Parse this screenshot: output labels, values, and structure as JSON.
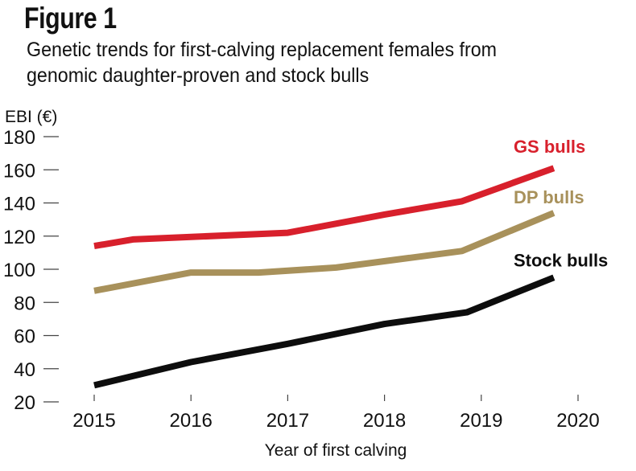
{
  "figure": {
    "title": "Figure 1",
    "subtitle_line1": "Genetic trends for first-calving replacement females from",
    "subtitle_line2": "genomic daughter-proven and stock bulls"
  },
  "chart_data": {
    "type": "line",
    "title": "Figure 1",
    "subtitle": "Genetic trends for first-calving replacement females from genomic daughter-proven and stock bulls",
    "xlabel": "Year of first calving",
    "ylabel": "EBI (€)",
    "xlim": [
      2015,
      2020
    ],
    "ylim": [
      20,
      180
    ],
    "x_ticks": [
      "2015",
      "2016",
      "2017",
      "2018",
      "2019",
      "2020"
    ],
    "y_ticks": [
      "180",
      "160",
      "140",
      "120",
      "100",
      "80",
      "60",
      "40",
      "20"
    ],
    "grid": false,
    "legend": "inline labels at line ends (right)",
    "series": [
      {
        "name": "GS bulls",
        "color": "#d8202c",
        "x": [
          2015.0,
          2015.4,
          2017.0,
          2018.0,
          2018.8,
          2019.75
        ],
        "y": [
          114,
          118,
          122,
          133,
          141,
          161
        ]
      },
      {
        "name": "DP bulls",
        "color": "#a8915b",
        "x": [
          2015.0,
          2016.0,
          2016.7,
          2017.5,
          2018.8,
          2019.75
        ],
        "y": [
          87,
          98,
          98,
          101,
          111,
          134
        ]
      },
      {
        "name": "Stock bulls",
        "color": "#0d0d0d",
        "x": [
          2015.0,
          2016.0,
          2017.0,
          2018.0,
          2018.85,
          2019.75
        ],
        "y": [
          30,
          44,
          55,
          67,
          74,
          95
        ]
      }
    ]
  }
}
